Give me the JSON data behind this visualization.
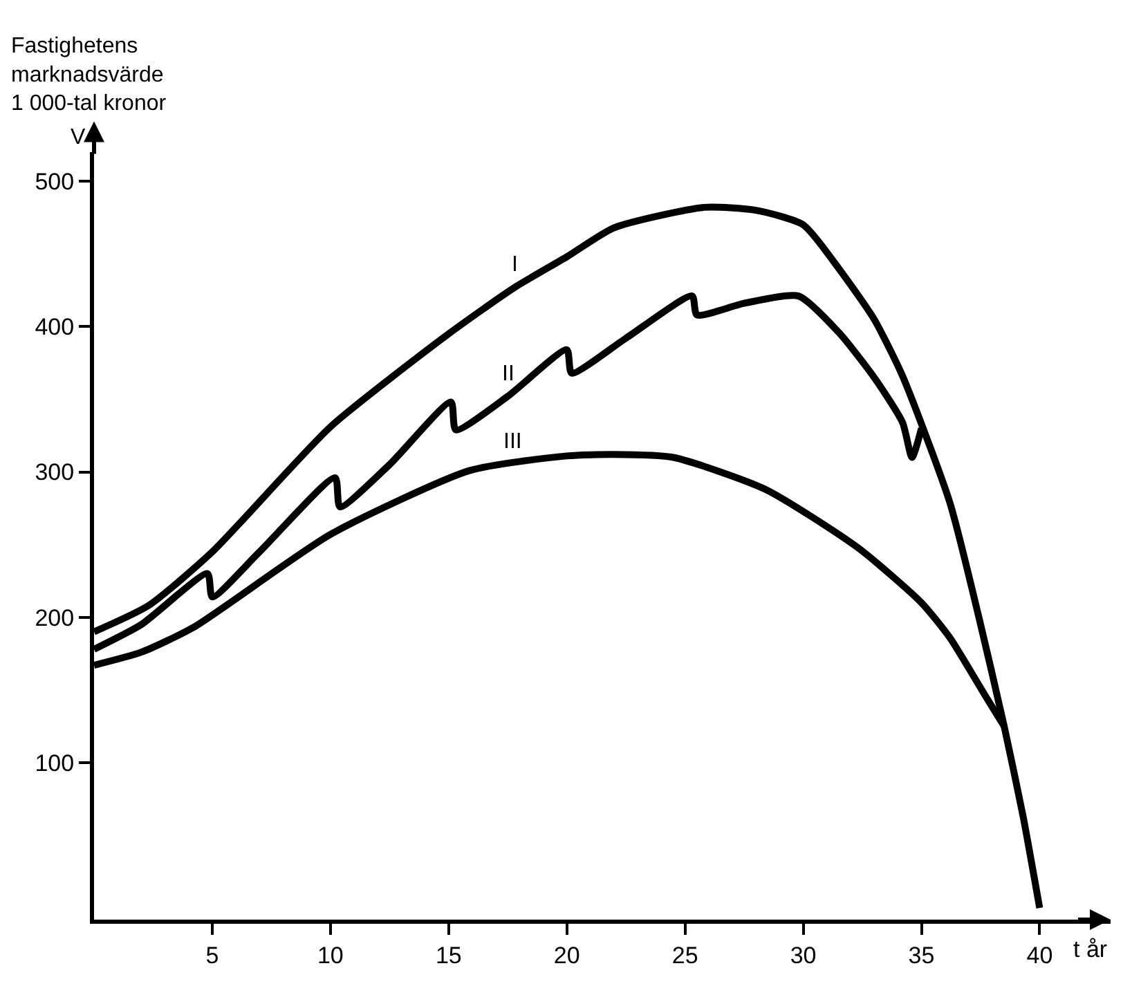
{
  "chart_data": {
    "type": "line",
    "ylabel": "Fastighetens\nmarknadsvärde\n1 000-tal kronor",
    "xlabel": "t år",
    "xlim": [
      0,
      43
    ],
    "ylim": [
      -8,
      520
    ],
    "xticks": [
      5,
      10,
      15,
      20,
      25,
      30,
      35,
      40
    ],
    "yticks": [
      100,
      200,
      300,
      400,
      500
    ],
    "marker": "none",
    "line_style": "solid",
    "series": [
      {
        "color": "#000000",
        "x": [
          0,
          2.3,
          5,
          10,
          15,
          17.8,
          20,
          22,
          25.8,
          28,
          30,
          31.5,
          33,
          34.2,
          36.2,
          37.4,
          38.5,
          39.3,
          40
        ],
        "values": [
          190,
          208,
          245,
          331,
          395,
          427,
          448,
          468,
          482,
          480,
          470,
          440,
          405,
          366,
          279,
          202,
          125,
          63,
          0
        ]
      },
      {
        "color": "#000000",
        "x": [
          0,
          2,
          4.8,
          5.0,
          7,
          10.2,
          10.4,
          12.5,
          15.1,
          15.3,
          17.5,
          20,
          20.2,
          22.5,
          25.3,
          25.5,
          27.5,
          29.8,
          31.5,
          33,
          34.2,
          34.6,
          35
        ],
        "values": [
          178,
          195,
          230,
          214,
          245,
          296,
          276,
          305,
          348,
          329,
          352,
          384,
          368,
          392,
          421,
          408,
          416,
          421,
          396,
          365,
          334,
          310,
          330
        ]
      },
      {
        "color": "#000000",
        "x": [
          0,
          2,
          4.2,
          10,
          15.9,
          20,
          22,
          24.5,
          28.4,
          32.3,
          35,
          36.2,
          37.7,
          38.5
        ],
        "values": [
          167,
          176,
          193,
          257,
          301,
          311,
          312,
          310,
          288,
          248,
          210,
          186,
          146,
          125
        ]
      }
    ],
    "annotations": [
      {
        "text": "I",
        "x": 17.8,
        "y": 427
      },
      {
        "text": "II",
        "x": 17.5,
        "y": 352
      },
      {
        "text": "III",
        "x": 17.7,
        "y": 305
      },
      "V"
    ]
  }
}
